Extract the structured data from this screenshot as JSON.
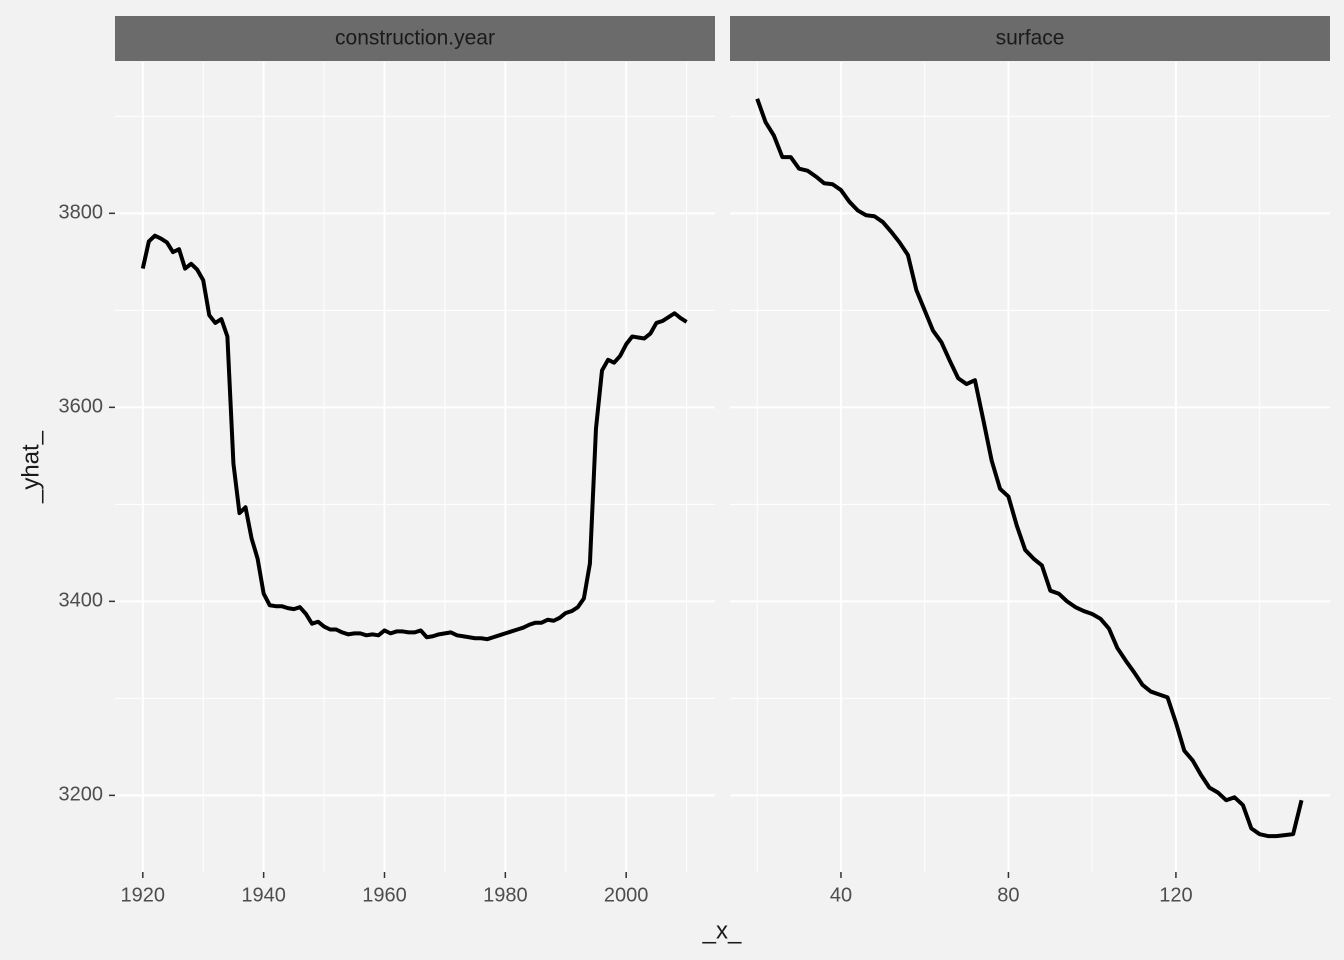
{
  "x_label": "_x_",
  "y_label": "_yhat_",
  "chart_data": [
    {
      "type": "line",
      "title": "construction.year",
      "color": "#000000",
      "x": [
        1920,
        1921,
        1922,
        1923,
        1924,
        1925,
        1926,
        1927,
        1928,
        1929,
        1930,
        1931,
        1932,
        1933,
        1934,
        1935,
        1936,
        1937,
        1938,
        1939,
        1940,
        1941,
        1942,
        1943,
        1944,
        1945,
        1946,
        1947,
        1948,
        1949,
        1950,
        1951,
        1952,
        1953,
        1954,
        1955,
        1956,
        1957,
        1958,
        1959,
        1960,
        1961,
        1962,
        1963,
        1964,
        1965,
        1966,
        1967,
        1968,
        1969,
        1970,
        1971,
        1972,
        1973,
        1974,
        1975,
        1976,
        1977,
        1978,
        1979,
        1980,
        1981,
        1982,
        1983,
        1984,
        1985,
        1986,
        1987,
        1988,
        1989,
        1990,
        1991,
        1992,
        1993,
        1994,
        1995,
        1996,
        1997,
        1998,
        1999,
        2000,
        2001,
        2002,
        2003,
        2004,
        2005,
        2006,
        2007,
        2008,
        2009,
        2010
      ],
      "values": [
        3743,
        3771,
        3777,
        3774,
        3770,
        3760,
        3763,
        3743,
        3748,
        3742,
        3731,
        3695,
        3687,
        3691,
        3673,
        3542,
        3491,
        3497,
        3465,
        3444,
        3408,
        3396,
        3395,
        3395,
        3393,
        3392,
        3394,
        3387,
        3377,
        3379,
        3374,
        3371,
        3371,
        3368,
        3366,
        3367,
        3367,
        3365,
        3366,
        3365,
        3370,
        3367,
        3369,
        3369,
        3368,
        3368,
        3370,
        3363,
        3364,
        3366,
        3367,
        3368,
        3365,
        3364,
        3363,
        3362,
        3362,
        3361,
        3363,
        3365,
        3367,
        3369,
        3371,
        3373,
        3376,
        3378,
        3378,
        3381,
        3380,
        3383,
        3388,
        3390,
        3394,
        3403,
        3439,
        3578,
        3638,
        3649,
        3646,
        3653,
        3665,
        3673,
        3672,
        3671,
        3676,
        3687,
        3689,
        3693,
        3697,
        3692,
        3688
      ],
      "xlim": [
        1915.4,
        2014.7
      ],
      "xticks": [
        1920,
        1940,
        1960,
        1980,
        2000
      ],
      "ylim": [
        3121,
        3956
      ],
      "yticks": [
        3200,
        3400,
        3600,
        3800
      ],
      "grid": true
    },
    {
      "type": "line",
      "title": "surface",
      "color": "#000000",
      "x": [
        20,
        22,
        24,
        26,
        28,
        30,
        32,
        34,
        36,
        38,
        40,
        42,
        44,
        46,
        48,
        50,
        52,
        54,
        56,
        58,
        60,
        62,
        64,
        66,
        68,
        70,
        72,
        74,
        76,
        78,
        80,
        82,
        84,
        86,
        88,
        90,
        92,
        94,
        96,
        98,
        100,
        102,
        104,
        106,
        108,
        110,
        112,
        114,
        116,
        118,
        120,
        122,
        124,
        126,
        128,
        130,
        132,
        134,
        136,
        138,
        140,
        142,
        144,
        146,
        148,
        150
      ],
      "values": [
        3918,
        3894,
        3880,
        3858,
        3858,
        3846,
        3844,
        3838,
        3831,
        3830,
        3824,
        3812,
        3803,
        3798,
        3797,
        3791,
        3781,
        3770,
        3757,
        3721,
        3700,
        3679,
        3667,
        3648,
        3630,
        3624,
        3628,
        3587,
        3545,
        3516,
        3508,
        3478,
        3453,
        3444,
        3437,
        3411,
        3408,
        3400,
        3394,
        3390,
        3387,
        3382,
        3372,
        3352,
        3339,
        3327,
        3314,
        3307,
        3304,
        3301,
        3275,
        3246,
        3236,
        3221,
        3208,
        3203,
        3195,
        3198,
        3190,
        3166,
        3160,
        3158,
        3158,
        3159,
        3160,
        3195
      ],
      "xlim": [
        13.5,
        156.8
      ],
      "xticks": [
        40,
        80,
        120
      ],
      "grid": true
    }
  ]
}
